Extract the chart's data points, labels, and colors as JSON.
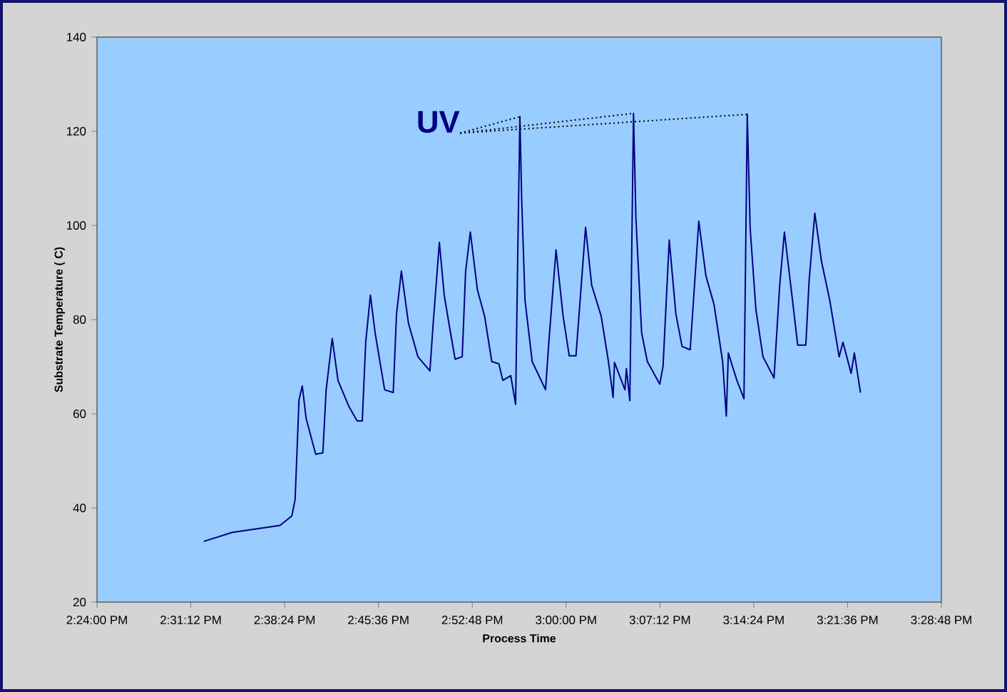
{
  "chart_data": {
    "type": "line",
    "xlabel": "Process Time",
    "ylabel": "Substrate Temperature ( C)",
    "annotations": [
      {
        "text": "UV",
        "x": 14.9409,
        "y": 123.1
      }
    ],
    "xlim": [
      14.4,
      15.48
    ],
    "ylim": [
      20,
      140
    ],
    "xticks": [
      {
        "value": 14.4,
        "label": "2:24:00 PM"
      },
      {
        "value": 14.52,
        "label": "2:31:12 PM"
      },
      {
        "value": 14.64,
        "label": "2:38:24 PM"
      },
      {
        "value": 14.76,
        "label": "2:45:36 PM"
      },
      {
        "value": 14.88,
        "label": "2:52:48 PM"
      },
      {
        "value": 15.0,
        "label": "3:00:00 PM"
      },
      {
        "value": 15.12,
        "label": "3:07:12 PM"
      },
      {
        "value": 15.24,
        "label": "3:14:24 PM"
      },
      {
        "value": 15.36,
        "label": "3:21:36 PM"
      },
      {
        "value": 15.48,
        "label": "3:28:48 PM"
      }
    ],
    "yticks": [
      20,
      40,
      60,
      80,
      100,
      120,
      140
    ],
    "marker": "none",
    "line_style": "solid",
    "series": [
      {
        "color": "#000080",
        "x": [
          14.5366,
          14.5731,
          14.6341,
          14.6492,
          14.6534,
          14.6584,
          14.6626,
          14.6675,
          14.6797,
          14.6889,
          14.6931,
          14.7009,
          14.7082,
          14.7223,
          14.7327,
          14.7393,
          14.7437,
          14.7497,
          14.7557,
          14.7679,
          14.7789,
          14.7831,
          14.7893,
          14.7984,
          14.8105,
          14.8258,
          14.83,
          14.8379,
          14.8441,
          14.8501,
          14.858,
          14.8671,
          14.8715,
          14.8775,
          14.8866,
          14.8958,
          14.9049,
          14.914,
          14.919,
          14.9292,
          14.9354,
          14.9383,
          14.9409,
          14.9432,
          14.9474,
          14.9566,
          14.9737,
          14.9779,
          14.9871,
          14.9962,
          15.004,
          15.0126,
          15.0249,
          15.0327,
          15.0449,
          15.0541,
          15.0601,
          15.0619,
          15.0753,
          15.0771,
          15.0815,
          15.0862,
          15.0893,
          15.0966,
          15.1039,
          15.1198,
          15.124,
          15.1319,
          15.1404,
          15.1483,
          15.1587,
          15.1697,
          15.1788,
          15.1892,
          15.2002,
          15.2049,
          15.2075,
          15.2184,
          15.2275,
          15.2317,
          15.2354,
          15.2427,
          15.2518,
          15.2659,
          15.2732,
          15.2792,
          15.2902,
          15.2962,
          15.3066,
          15.3108,
          15.3181,
          15.3267,
          15.3371,
          15.3492,
          15.3541,
          15.3645,
          15.3687,
          15.3765
        ],
        "values": [
          32.9,
          34.8,
          36.3,
          38.3,
          41.8,
          63.0,
          65.9,
          59.0,
          51.4,
          51.7,
          65.1,
          76.0,
          67.1,
          61.5,
          58.5,
          58.5,
          75.2,
          85.2,
          77.2,
          65.1,
          64.5,
          81.2,
          90.3,
          79.2,
          72.1,
          69.1,
          79.2,
          96.4,
          85.2,
          79.2,
          71.6,
          72.1,
          90.3,
          98.6,
          86.3,
          80.7,
          71.1,
          70.6,
          67.1,
          68.1,
          62.0,
          95.6,
          123.1,
          105.5,
          84.2,
          71.1,
          65.1,
          75.2,
          94.8,
          80.7,
          72.3,
          72.3,
          99.6,
          87.3,
          80.7,
          71.1,
          63.5,
          70.9,
          65.1,
          69.6,
          62.8,
          123.8,
          101.4,
          77.2,
          71.1,
          66.3,
          70.1,
          96.9,
          81.2,
          74.3,
          73.6,
          100.9,
          89.3,
          83.2,
          71.1,
          59.5,
          72.9,
          67.1,
          63.2,
          123.6,
          99.4,
          82.2,
          72.1,
          67.6,
          87.3,
          98.6,
          83.2,
          74.6,
          74.6,
          88.3,
          102.6,
          92.3,
          84.2,
          72.1,
          75.2,
          68.6,
          72.9,
          64.5
        ]
      }
    ]
  }
}
